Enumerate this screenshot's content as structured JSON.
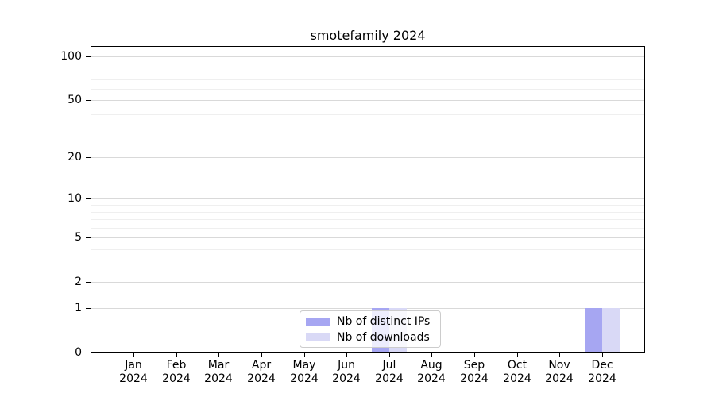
{
  "chart_data": {
    "type": "bar",
    "title": "smotefamily 2024",
    "categories": [
      "Jan",
      "Feb",
      "Mar",
      "Apr",
      "May",
      "Jun",
      "Jul",
      "Aug",
      "Sep",
      "Oct",
      "Nov",
      "Dec"
    ],
    "category_year": "2024",
    "series": [
      {
        "name": "Nb of distinct IPs",
        "color": "#a6a6f2",
        "values": [
          0,
          0,
          0,
          0,
          0,
          0,
          1,
          0,
          0,
          0,
          0,
          1
        ]
      },
      {
        "name": "Nb of downloads",
        "color": "#d9d9f6",
        "values": [
          0,
          0,
          0,
          0,
          0,
          0,
          1,
          0,
          0,
          0,
          0,
          1
        ]
      }
    ],
    "xlabel": "",
    "ylabel": "",
    "yscale": "log1p",
    "yticks": [
      0,
      1,
      2,
      5,
      10,
      20,
      50,
      100
    ],
    "yticks_minor": [
      3,
      4,
      6,
      7,
      8,
      9,
      30,
      40,
      60,
      70,
      80,
      90
    ],
    "ylim": [
      0,
      118
    ],
    "grid": "horizontal",
    "legend_position": "lower center",
    "colors": {
      "grid_major": "#d9d9d9",
      "grid_minor": "#efefef",
      "axis": "#000000",
      "text": "#000000"
    }
  }
}
